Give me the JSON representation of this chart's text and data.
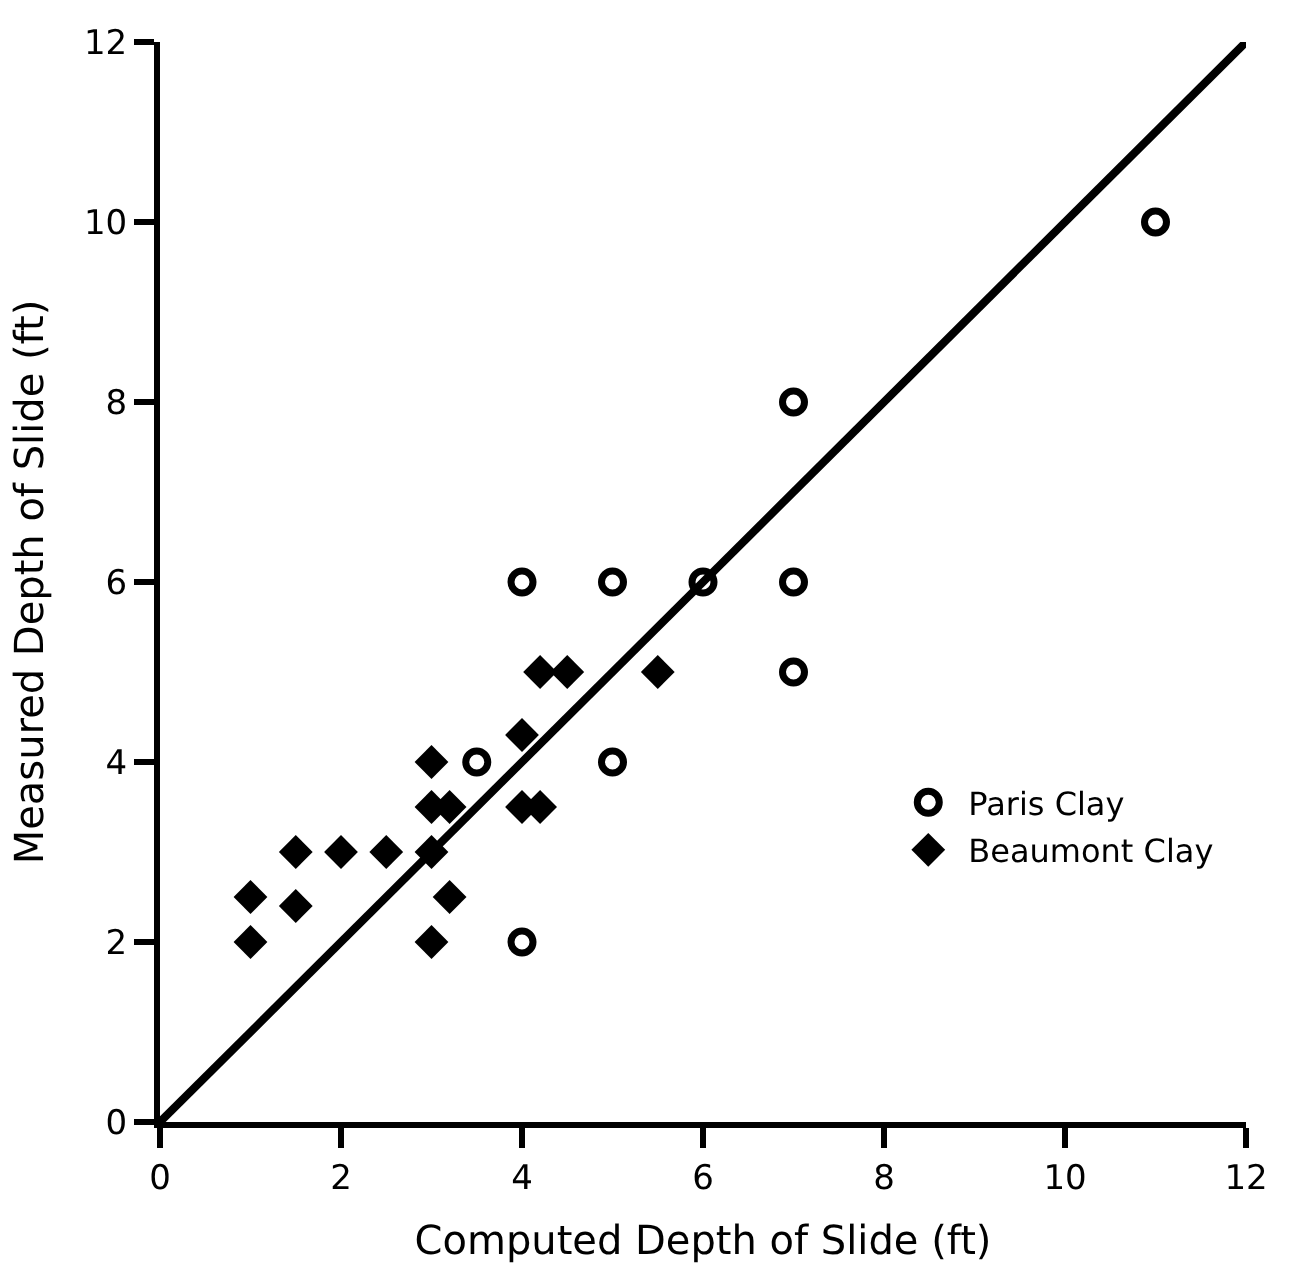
{
  "chart_data": {
    "type": "scatter",
    "xlabel": "Computed Depth of Slide (ft)",
    "ylabel": "Measured Depth of Slide (ft)",
    "xlim": [
      0,
      12
    ],
    "ylim": [
      0,
      12
    ],
    "xticks": [
      0,
      2,
      4,
      6,
      8,
      10,
      12
    ],
    "yticks": [
      0,
      2,
      4,
      6,
      8,
      10,
      12
    ],
    "legend": "bottom right",
    "series": [
      {
        "name": "Paris Clay",
        "color": "#000000",
        "marker": "circle-open",
        "x": [
          4,
          5,
          6,
          7,
          7,
          7,
          11,
          3.5,
          5,
          4
        ],
        "values": [
          6,
          6,
          6,
          8,
          6,
          5,
          10,
          4,
          4,
          2
        ]
      },
      {
        "name": "Beaumont Clay",
        "color": "#000000",
        "marker": "diamond",
        "x": [
          1,
          1,
          1.5,
          1.5,
          2,
          2.5,
          3,
          3,
          3,
          3,
          3.2,
          3.2,
          4,
          4,
          4.2,
          4.2,
          4.5,
          5.5
        ],
        "values": [
          2,
          2.5,
          2.4,
          3,
          3,
          3,
          3,
          2,
          3.5,
          4,
          3.5,
          2.5,
          4.3,
          3.5,
          3.5,
          5,
          5,
          5
        ]
      },
      {
        "type": "line",
        "color": "#000000",
        "line_style": "solid",
        "x": [
          0,
          12
        ],
        "values": [
          0,
          12
        ]
      }
    ]
  }
}
